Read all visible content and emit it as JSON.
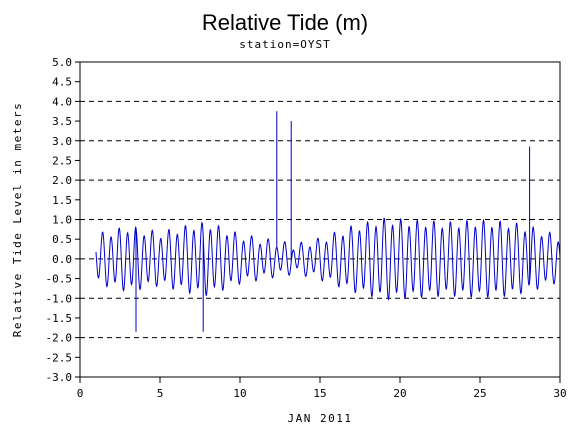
{
  "chart_data": {
    "type": "line",
    "title": "Relative Tide (m)",
    "subtitle": "station=OYST",
    "xlabel": "JAN 2011",
    "ylabel": "Relative Tide Level in meters",
    "xlim": [
      0,
      30
    ],
    "ylim": [
      -3.0,
      5.0
    ],
    "xticks": [
      0,
      5,
      10,
      15,
      20,
      25,
      30
    ],
    "xtick_labels": [
      "0",
      "5",
      "10",
      "15",
      "20",
      "25",
      "30"
    ],
    "yticks": [
      -3.0,
      -2.5,
      -2.0,
      -1.5,
      -1.0,
      -0.5,
      0.0,
      0.5,
      1.0,
      1.5,
      2.0,
      2.5,
      3.0,
      3.5,
      4.0,
      4.5,
      5.0
    ],
    "ytick_labels": [
      "-3.0",
      "-2.5",
      "-2.0",
      "-1.5",
      "-1.0",
      "-0.5",
      "0.0",
      "0.5",
      "1.0",
      "1.5",
      "2.0",
      "2.5",
      "3.0",
      "3.5",
      "4.0",
      "4.5",
      "5.0"
    ],
    "grid_lines_y": [
      -3.0,
      -2.0,
      -1.0,
      0.0,
      1.0,
      2.0,
      3.0,
      4.0,
      5.0
    ],
    "grid": "dashed horizontal",
    "series": [
      {
        "color": "#0000cc",
        "x_start": 1.0,
        "x_end": 30.0,
        "semidiurnal_period_days": 0.5175,
        "amplitude_envelope": [
          {
            "x": 1.0,
            "amp": 0.55
          },
          {
            "x": 3.0,
            "amp": 0.75
          },
          {
            "x": 5.0,
            "amp": 0.6
          },
          {
            "x": 7.0,
            "amp": 0.8
          },
          {
            "x": 8.0,
            "amp": 0.85
          },
          {
            "x": 10.0,
            "amp": 0.55
          },
          {
            "x": 12.0,
            "amp": 0.4
          },
          {
            "x": 13.5,
            "amp": 0.3
          },
          {
            "x": 15.0,
            "amp": 0.45
          },
          {
            "x": 17.0,
            "amp": 0.75
          },
          {
            "x": 19.0,
            "amp": 0.95
          },
          {
            "x": 21.0,
            "amp": 0.9
          },
          {
            "x": 23.0,
            "amp": 0.85
          },
          {
            "x": 25.0,
            "amp": 0.9
          },
          {
            "x": 27.0,
            "amp": 0.85
          },
          {
            "x": 28.5,
            "amp": 0.7
          },
          {
            "x": 30.0,
            "amp": 0.5
          }
        ],
        "spikes": [
          {
            "x": 3.5,
            "y": -1.85
          },
          {
            "x": 7.7,
            "y": -1.85
          },
          {
            "x": 12.3,
            "y": 3.75
          },
          {
            "x": 13.2,
            "y": 3.5
          },
          {
            "x": 28.1,
            "y": 2.85
          }
        ]
      }
    ]
  }
}
